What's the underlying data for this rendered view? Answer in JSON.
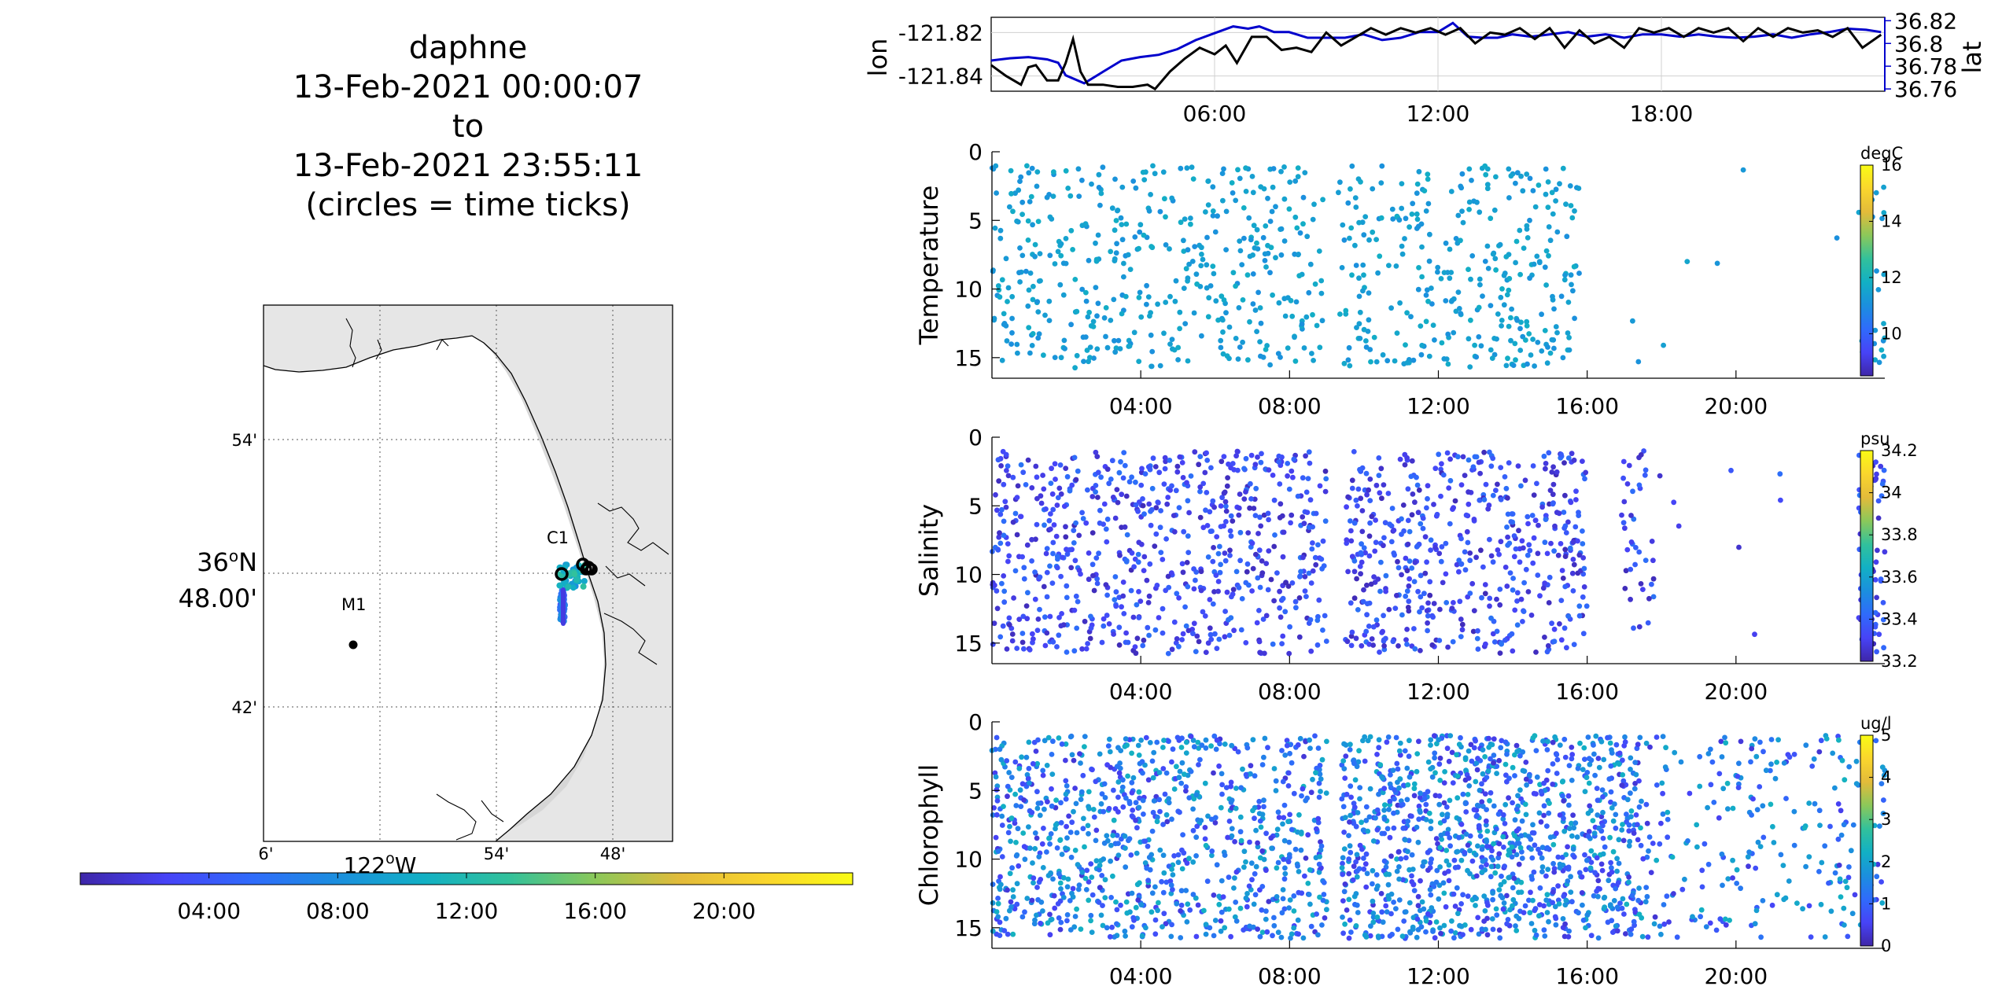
{
  "figure": {
    "title_lines": [
      "daphne",
      "13-Feb-2021 00:00:07",
      "to",
      "13-Feb-2021 23:55:11",
      "(circles = time ticks)"
    ]
  },
  "map": {
    "lat_ticks": [
      "54'",
      "48.00'",
      "42'"
    ],
    "lat_major_deg": "36",
    "lat_major_hemi": "N",
    "lon_ticks": [
      "6'",
      "54'",
      "48'"
    ],
    "lon_major_deg": "122",
    "lon_major_hemi": "W",
    "stations": [
      {
        "name": "M1"
      },
      {
        "name": "C1"
      }
    ],
    "time_colorbar_ticks": [
      "04:00",
      "08:00",
      "12:00",
      "16:00",
      "20:00"
    ]
  },
  "colors": {
    "track_lon": "#000000",
    "track_lat": "#0000cc",
    "land": "#e6e6e6",
    "parula": [
      "#3e26a8",
      "#4743f7",
      "#2f6bfb",
      "#1b8fde",
      "#12b0c4",
      "#32c19b",
      "#8bc85a",
      "#e3bb3a",
      "#fad62d",
      "#f9fb15"
    ]
  },
  "chart_data": [
    {
      "type": "line",
      "name": "position timeseries",
      "x_ticks": [
        "06:00",
        "12:00",
        "18:00"
      ],
      "xlim_hours": [
        0,
        24
      ],
      "series": [
        {
          "name": "lon",
          "axis": "left",
          "color": "#000000",
          "ylabel": "lon",
          "ylim": [
            -121.847,
            -121.813
          ],
          "yticks": [
            "-121.82",
            "-121.84"
          ],
          "x_hours": [
            0.0,
            0.4,
            0.8,
            1.0,
            1.2,
            1.5,
            1.8,
            2.0,
            2.2,
            2.4,
            2.6,
            3.0,
            3.4,
            3.8,
            4.2,
            4.4,
            4.8,
            5.2,
            5.6,
            6.0,
            6.3,
            6.6,
            7.0,
            7.4,
            7.8,
            8.2,
            8.6,
            9.0,
            9.4,
            9.8,
            10.2,
            10.6,
            11.0,
            11.4,
            11.8,
            12.2,
            12.6,
            13.0,
            13.4,
            13.8,
            14.2,
            14.6,
            15.0,
            15.4,
            15.8,
            16.2,
            16.6,
            17.0,
            17.4,
            17.8,
            18.2,
            18.6,
            19.0,
            19.4,
            19.8,
            20.2,
            20.6,
            21.0,
            21.4,
            21.8,
            22.2,
            22.6,
            23.0,
            23.4,
            23.9
          ],
          "values": [
            -121.835,
            -121.84,
            -121.844,
            -121.836,
            -121.835,
            -121.842,
            -121.842,
            -121.834,
            -121.823,
            -121.838,
            -121.844,
            -121.844,
            -121.845,
            -121.845,
            -121.844,
            -121.846,
            -121.838,
            -121.832,
            -121.827,
            -121.83,
            -121.826,
            -121.834,
            -121.822,
            -121.822,
            -121.828,
            -121.827,
            -121.829,
            -121.82,
            -121.826,
            -121.822,
            -121.818,
            -121.821,
            -121.818,
            -121.82,
            -121.818,
            -121.821,
            -121.818,
            -121.825,
            -121.82,
            -121.821,
            -121.818,
            -121.823,
            -121.818,
            -121.827,
            -121.819,
            -121.825,
            -121.822,
            -121.827,
            -121.818,
            -121.82,
            -121.818,
            -121.822,
            -121.818,
            -121.82,
            -121.818,
            -121.824,
            -121.818,
            -121.822,
            -121.818,
            -121.82,
            -121.819,
            -121.822,
            -121.818,
            -121.827,
            -121.821
          ]
        },
        {
          "name": "lat",
          "axis": "right",
          "color": "#0000cc",
          "ylabel": "lat",
          "ylim": [
            36.758,
            36.823
          ],
          "yticks": [
            "36.82",
            "36.8",
            "36.78",
            "36.76"
          ],
          "x_hours": [
            0.0,
            0.5,
            1.0,
            1.5,
            1.8,
            2.0,
            2.5,
            3.0,
            3.5,
            4.0,
            4.5,
            5.0,
            5.5,
            6.0,
            6.5,
            6.9,
            7.2,
            7.6,
            8.0,
            8.5,
            9.0,
            9.5,
            10.0,
            10.5,
            11.0,
            11.5,
            12.0,
            12.4,
            12.8,
            13.2,
            13.6,
            14.0,
            14.5,
            15.0,
            15.5,
            16.0,
            16.5,
            17.0,
            17.5,
            18.0,
            18.5,
            19.0,
            19.5,
            20.0,
            20.5,
            21.0,
            21.5,
            22.0,
            22.5,
            23.0,
            23.5,
            23.9
          ],
          "values": [
            36.785,
            36.787,
            36.788,
            36.786,
            36.783,
            36.772,
            36.765,
            36.775,
            36.785,
            36.788,
            36.79,
            36.795,
            36.803,
            36.809,
            36.815,
            36.813,
            36.815,
            36.81,
            36.81,
            36.805,
            36.805,
            36.805,
            36.808,
            36.803,
            36.805,
            36.81,
            36.81,
            36.818,
            36.806,
            36.805,
            36.805,
            36.808,
            36.806,
            36.808,
            36.81,
            36.806,
            36.808,
            36.805,
            36.808,
            36.808,
            36.806,
            36.808,
            36.806,
            36.805,
            36.806,
            36.808,
            36.805,
            36.808,
            36.81,
            36.813,
            36.812,
            36.81
          ]
        }
      ]
    },
    {
      "type": "scatter",
      "name": "temperature",
      "ylabel": "Temperature",
      "colorbar_unit": "degC",
      "colorbar_ticks": [
        "16",
        "14",
        "12",
        "10"
      ],
      "clim": [
        8.5,
        16
      ],
      "ylim": [
        0,
        16.5
      ],
      "y_reversed": true,
      "yticks": [
        "0",
        "5",
        "10",
        "15"
      ],
      "x_ticks": [
        "04:00",
        "08:00",
        "12:00",
        "16:00",
        "20:00"
      ],
      "xlim_hours": [
        0,
        24
      ],
      "coverage": [
        [
          0.0,
          8.9,
          450
        ],
        [
          9.3,
          15.8,
          330
        ],
        [
          16.0,
          23.3,
          7
        ],
        [
          23.3,
          24.0,
          30
        ]
      ],
      "value_range": [
        11.0,
        11.8
      ]
    },
    {
      "type": "scatter",
      "name": "salinity",
      "ylabel": "Salinity",
      "colorbar_unit": "psu",
      "colorbar_ticks": [
        "34.2",
        "34",
        "33.8",
        "33.6",
        "33.4",
        "33.2"
      ],
      "clim": [
        33.2,
        34.2
      ],
      "ylim": [
        0,
        16.5
      ],
      "y_reversed": true,
      "yticks": [
        "0",
        "5",
        "10",
        "15"
      ],
      "x_ticks": [
        "04:00",
        "08:00",
        "12:00",
        "16:00",
        "20:00"
      ],
      "xlim_hours": [
        0,
        24
      ],
      "coverage": [
        [
          0.0,
          9.0,
          700
        ],
        [
          9.5,
          16.0,
          520
        ],
        [
          16.9,
          17.8,
          40
        ],
        [
          17.8,
          23.3,
          8
        ],
        [
          23.3,
          24.0,
          90
        ]
      ],
      "value_range": [
        33.22,
        33.45
      ]
    },
    {
      "type": "scatter",
      "name": "chlorophyll",
      "ylabel": "Chlorophyll",
      "colorbar_unit": "ug/l",
      "colorbar_ticks": [
        "5",
        "4",
        "3",
        "2",
        "1",
        "0"
      ],
      "clim": [
        0,
        5
      ],
      "ylim": [
        0,
        16.5
      ],
      "y_reversed": true,
      "yticks": [
        "0",
        "5",
        "10",
        "15"
      ],
      "x_ticks": [
        "04:00",
        "08:00",
        "12:00",
        "16:00",
        "20:00"
      ],
      "xlim_hours": [
        0,
        24
      ],
      "coverage": [
        [
          0.0,
          9.0,
          900
        ],
        [
          9.4,
          17.5,
          1100
        ],
        [
          17.5,
          24.0,
          250
        ]
      ],
      "value_range": [
        0.3,
        2.3
      ]
    }
  ]
}
